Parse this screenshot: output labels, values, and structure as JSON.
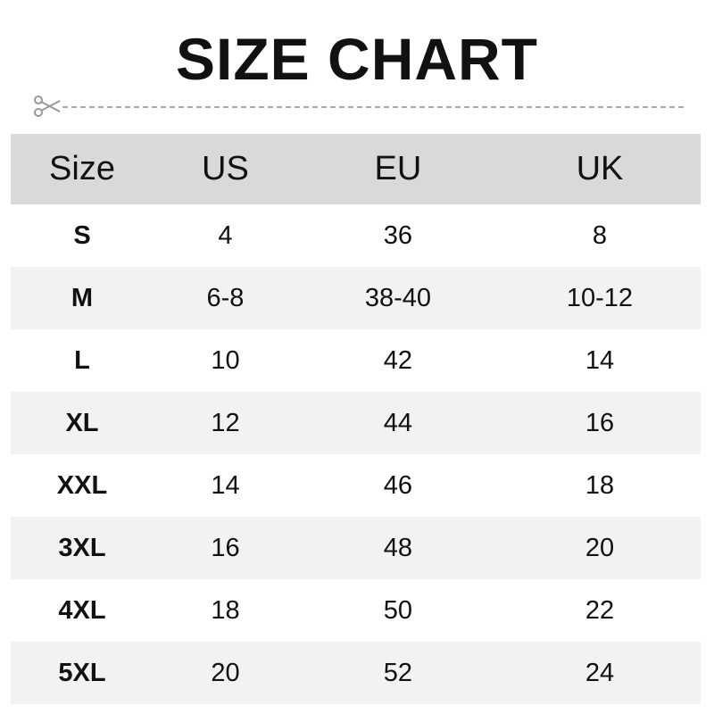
{
  "title": "SIZE CHART",
  "icons": {
    "cut": "scissors-icon"
  },
  "columns": [
    "Size",
    "US",
    "EU",
    "UK"
  ],
  "rows": [
    [
      "S",
      "4",
      "36",
      "8"
    ],
    [
      "M",
      "6-8",
      "38-40",
      "10-12"
    ],
    [
      "L",
      "10",
      "42",
      "14"
    ],
    [
      "XL",
      "12",
      "44",
      "16"
    ],
    [
      "XXL",
      "14",
      "46",
      "18"
    ],
    [
      "3XL",
      "16",
      "48",
      "20"
    ],
    [
      "4XL",
      "18",
      "50",
      "22"
    ],
    [
      "5XL",
      "20",
      "52",
      "24"
    ]
  ],
  "colors": {
    "header_bg": "#d9d9d9",
    "stripe_bg": "#f2f2f2"
  }
}
